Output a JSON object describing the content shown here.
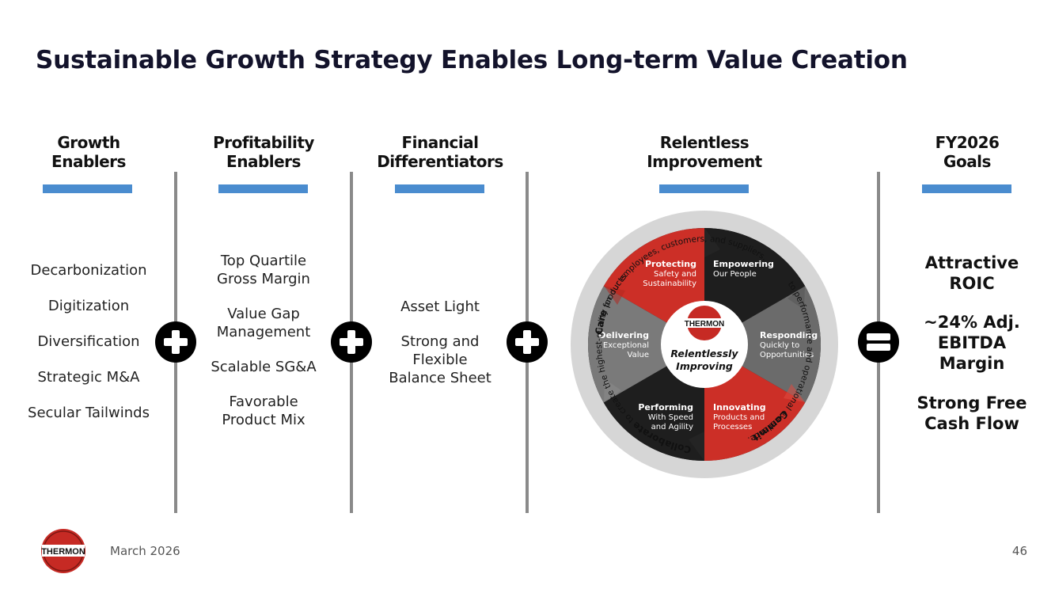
{
  "title": "Sustainable Growth Strategy Enables Long-term Value Creation",
  "accent_color": "#4a8ccf",
  "brand_red": "#d9342b",
  "columns": [
    {
      "heading": [
        "Growth",
        "Enablers"
      ],
      "items": [
        "Decarbonization",
        "Digitization",
        "Diversification",
        "Strategic M&A",
        "Secular Tailwinds"
      ]
    },
    {
      "heading": [
        "Profitability",
        "Enablers"
      ],
      "items": [
        [
          "Top Quartile",
          "Gross Margin"
        ],
        [
          "Value Gap",
          "Management"
        ],
        [
          "Scalable SG&A"
        ],
        [
          "Favorable",
          "Product Mix"
        ]
      ]
    },
    {
      "heading": [
        "Financial",
        "Differentiators"
      ],
      "items": [
        [
          "Asset Light"
        ],
        [
          "Strong and",
          "Flexible",
          "Balance Sheet"
        ]
      ]
    },
    {
      "heading": [
        "Relentless",
        "Improvement"
      ]
    },
    {
      "heading": [
        "FY2026",
        "Goals"
      ],
      "items": [
        [
          "Attractive",
          "ROIC"
        ],
        [
          "~24% Adj.",
          "EBITDA",
          "Margin"
        ],
        [
          "Strong Free",
          "Cash Flow"
        ]
      ]
    }
  ],
  "operators": [
    "plus-icon",
    "plus-icon",
    "plus-icon",
    "equals-icon"
  ],
  "wheel": {
    "center_logo": "THERMON",
    "center_text": [
      "Relentlessly",
      "Improving"
    ],
    "segments": [
      {
        "title": "Protecting",
        "sub": [
          "Safety and",
          "Sustainability"
        ]
      },
      {
        "title": "Empowering",
        "sub": [
          "Our People"
        ]
      },
      {
        "title": "Responding",
        "sub": [
          "Quickly to",
          "Opportunities"
        ]
      },
      {
        "title": "Innovating",
        "sub": [
          "Products and",
          "Processes"
        ]
      },
      {
        "title": "Performing",
        "sub": [
          "With Speed",
          "and Agility"
        ]
      },
      {
        "title": "Delivering",
        "sub": [
          "Exceptional",
          "Value"
        ]
      }
    ],
    "ring": {
      "care_bold": "Care",
      "care_rest": " for our employees, customers, and suppliers.",
      "excellence": "to performance and operational excellence.",
      "commit_bold": "Commit",
      "collab_bold": "Collaborate",
      "collab_rest": " to create the highest-quality products."
    }
  },
  "footer": {
    "logo": "THERMON",
    "date": "March 2026",
    "page": "46"
  }
}
